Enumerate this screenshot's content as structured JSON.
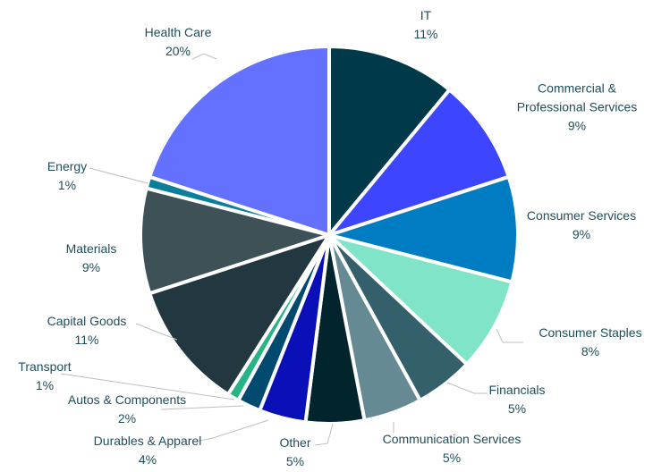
{
  "chart_data": {
    "type": "pie",
    "title": "",
    "slices": [
      {
        "label": "IT",
        "value": 11,
        "pct": "11%",
        "color": "#003a4a"
      },
      {
        "label": "Commercial & Professional Services",
        "value": 9,
        "pct": "9%",
        "color": "#3d45ff"
      },
      {
        "label": "Consumer Services",
        "value": 9,
        "pct": "9%",
        "color": "#007cc2"
      },
      {
        "label": "Consumer Staples",
        "value": 8,
        "pct": "8%",
        "color": "#80e5c8"
      },
      {
        "label": "Financials",
        "value": 5,
        "pct": "5%",
        "color": "#33606b"
      },
      {
        "label": "Communication Services",
        "value": 5,
        "pct": "5%",
        "color": "#668a94"
      },
      {
        "label": "Other",
        "value": 5,
        "pct": "5%",
        "color": "#02242c"
      },
      {
        "label": "Durables & Apparel",
        "value": 4,
        "pct": "4%",
        "color": "#0a10b8"
      },
      {
        "label": "Autos & Components",
        "value": 2,
        "pct": "2%",
        "color": "#004a70"
      },
      {
        "label": "Transport",
        "value": 1,
        "pct": "1%",
        "color": "#26b386"
      },
      {
        "label": "Capital Goods",
        "value": 11,
        "pct": "11%",
        "color": "#22373f"
      },
      {
        "label": "Materials",
        "value": 9,
        "pct": "9%",
        "color": "#3e5157"
      },
      {
        "label": "Energy",
        "value": 1,
        "pct": "1%",
        "color": "#0a7e9a"
      },
      {
        "label": "Health Care",
        "value": 20,
        "pct": "20%",
        "color": "#6470ff"
      }
    ],
    "legend": "none"
  }
}
